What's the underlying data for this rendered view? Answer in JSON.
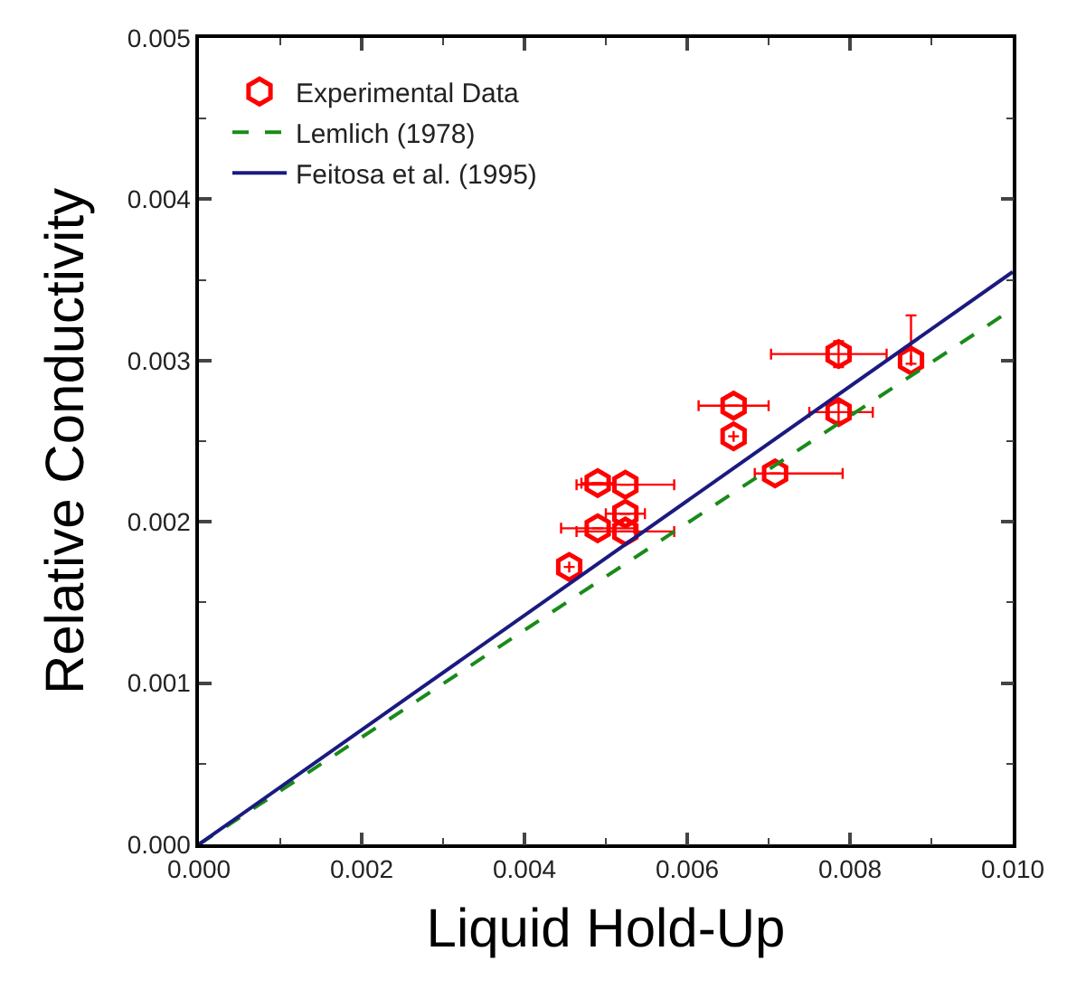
{
  "chart_data": {
    "type": "scatter",
    "xlabel": "Liquid Hold-Up",
    "ylabel": "Relative Conductivity",
    "xlim": [
      0,
      0.01
    ],
    "ylim": [
      0,
      0.005
    ],
    "xticks": [
      {
        "value": 0,
        "label": "0.000"
      },
      {
        "value": 0.002,
        "label": "0.002"
      },
      {
        "value": 0.004,
        "label": "0.004"
      },
      {
        "value": 0.006,
        "label": "0.006"
      },
      {
        "value": 0.008,
        "label": "0.008"
      },
      {
        "value": 0.01,
        "label": "0.010"
      }
    ],
    "yticks": [
      {
        "value": 0,
        "label": "0.000"
      },
      {
        "value": 0.001,
        "label": "0.001"
      },
      {
        "value": 0.002,
        "label": "0.002"
      },
      {
        "value": 0.003,
        "label": "0.003"
      },
      {
        "value": 0.004,
        "label": "0.004"
      },
      {
        "value": 0.005,
        "label": "0.005"
      }
    ],
    "legend": "top left",
    "series": [
      {
        "name": "Experimental Data",
        "color": "#ff0000",
        "x": [
          0.00455,
          0.0049,
          0.0049,
          0.00524,
          0.00524,
          0.00524,
          0.00657,
          0.00657,
          0.00708,
          0.00786,
          0.00786,
          0.00875
        ],
        "values": [
          0.00172,
          0.00224,
          0.00196,
          0.00223,
          0.00205,
          0.00194,
          0.00272,
          0.00253,
          0.0023,
          0.00304,
          0.00268,
          0.003
        ],
        "xerrors": [
          null,
          0.0002,
          0.00045,
          0.0006,
          0.00024,
          0.0006,
          0.00043,
          null,
          [
            0.00683,
            0.00791
          ],
          [
            0.00703,
            0.00845
          ],
          [
            0.0075,
            0.00828
          ],
          null
        ],
        "errors": [
          null,
          null,
          null,
          null,
          null,
          null,
          null,
          null,
          null,
          8e-05,
          6e-05,
          [
            0.00298,
            0.00328
          ]
        ]
      },
      {
        "name": "Lemlich (1978)",
        "type": "line",
        "line_style": "dashed",
        "color": "#1a8a1a",
        "x": [
          0,
          0.01
        ],
        "values": [
          0,
          0.00332
        ]
      },
      {
        "name": "Feitosa et al. (1995)",
        "type": "line",
        "line_style": "solid",
        "color": "#1a1a80",
        "x": [
          0,
          0.01
        ],
        "values": [
          0,
          0.00355
        ]
      }
    ]
  }
}
